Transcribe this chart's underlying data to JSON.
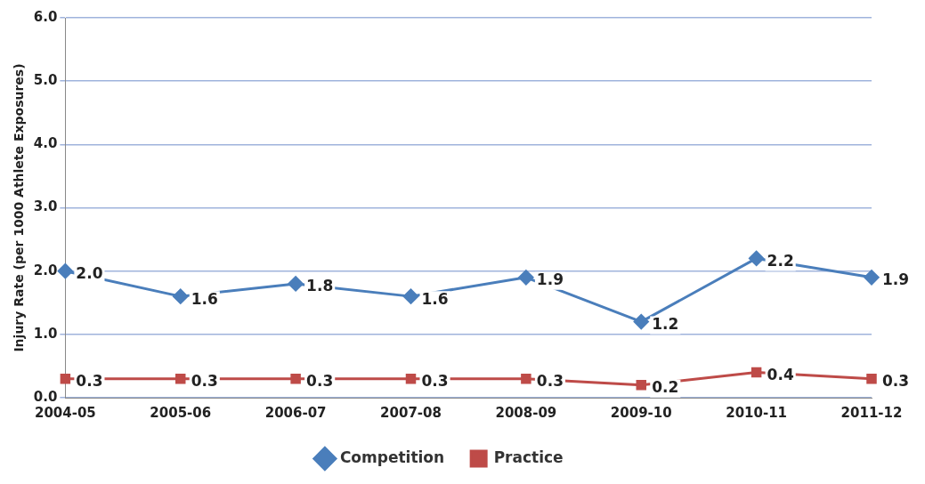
{
  "chart_data": {
    "type": "line",
    "ylabel": "Injury Rate (per 1000 Athlete Exposures)",
    "categories": [
      "2004-05",
      "2005-06",
      "2006-07",
      "2007-08",
      "2008-09",
      "2009-10",
      "2010-11",
      "2011-12"
    ],
    "series": [
      {
        "name": "Competition",
        "color": "#4a7ebb",
        "marker": "diamond",
        "values": [
          2.0,
          1.6,
          1.8,
          1.6,
          1.9,
          1.2,
          2.2,
          1.9
        ],
        "value_labels": [
          "2.0",
          "1.6",
          "1.8",
          "1.6",
          "1.9",
          "1.2",
          "2.2",
          "1.9"
        ]
      },
      {
        "name": "Practice",
        "color": "#be4b48",
        "marker": "square",
        "values": [
          0.3,
          0.3,
          0.3,
          0.3,
          0.3,
          0.2,
          0.4,
          0.3
        ],
        "value_labels": [
          "0.3",
          "0.3",
          "0.3",
          "0.3",
          "0.3",
          "0.2",
          "0.4",
          "0.3"
        ]
      }
    ],
    "ylim": [
      0,
      6
    ],
    "yticks": [
      {
        "value": 0,
        "label": "0.0"
      },
      {
        "value": 1,
        "label": "1.0"
      },
      {
        "value": 2,
        "label": "2.0"
      },
      {
        "value": 3,
        "label": "3.0"
      },
      {
        "value": 4,
        "label": "4.0"
      },
      {
        "value": 5,
        "label": "5.0"
      },
      {
        "value": 6,
        "label": "6.0"
      }
    ],
    "grid": "y",
    "legend": "bottom",
    "line_style": "solid"
  }
}
